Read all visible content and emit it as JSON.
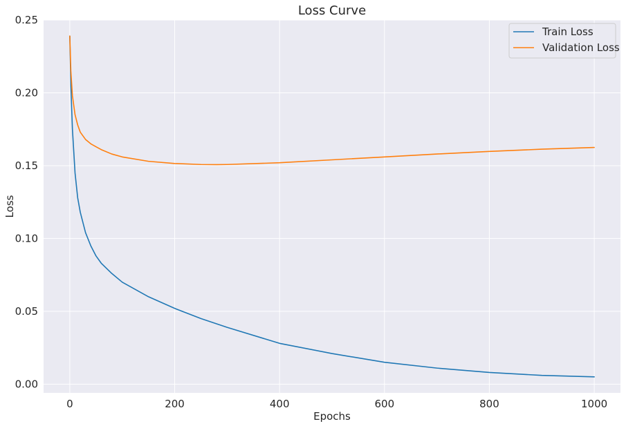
{
  "chart_data": {
    "type": "line",
    "title": "Loss Curve",
    "xlabel": "Epochs",
    "ylabel": "Loss",
    "xlim": [
      -50,
      1050
    ],
    "ylim": [
      -0.006,
      0.25
    ],
    "xticks": [
      0,
      200,
      400,
      600,
      800,
      1000
    ],
    "xtick_labels": [
      "0",
      "200",
      "400",
      "600",
      "800",
      "1000"
    ],
    "yticks": [
      0.0,
      0.05,
      0.1,
      0.15,
      0.2,
      0.25
    ],
    "ytick_labels": [
      "0.00",
      "0.05",
      "0.10",
      "0.15",
      "0.20",
      "0.25"
    ],
    "grid": true,
    "legend_position": "top-right",
    "background": "#eaeaf2",
    "series": [
      {
        "name": "Train Loss",
        "color": "#1f77b4",
        "x": [
          0,
          2,
          5,
          10,
          15,
          20,
          30,
          40,
          50,
          60,
          80,
          100,
          150,
          200,
          250,
          300,
          400,
          500,
          600,
          700,
          800,
          900,
          1000
        ],
        "y": [
          0.239,
          0.205,
          0.175,
          0.145,
          0.128,
          0.118,
          0.104,
          0.095,
          0.088,
          0.083,
          0.076,
          0.07,
          0.06,
          0.052,
          0.045,
          0.039,
          0.028,
          0.021,
          0.015,
          0.011,
          0.008,
          0.006,
          0.005
        ]
      },
      {
        "name": "Validation Loss",
        "color": "#ff7f0e",
        "x": [
          0,
          2,
          5,
          10,
          15,
          20,
          30,
          40,
          50,
          60,
          80,
          100,
          150,
          200,
          250,
          280,
          300,
          400,
          500,
          600,
          700,
          800,
          900,
          1000
        ],
        "y": [
          0.239,
          0.215,
          0.198,
          0.185,
          0.178,
          0.173,
          0.168,
          0.165,
          0.163,
          0.161,
          0.158,
          0.156,
          0.153,
          0.1515,
          0.1508,
          0.1507,
          0.1508,
          0.152,
          0.154,
          0.156,
          0.158,
          0.1598,
          0.1613,
          0.1625
        ]
      }
    ]
  }
}
